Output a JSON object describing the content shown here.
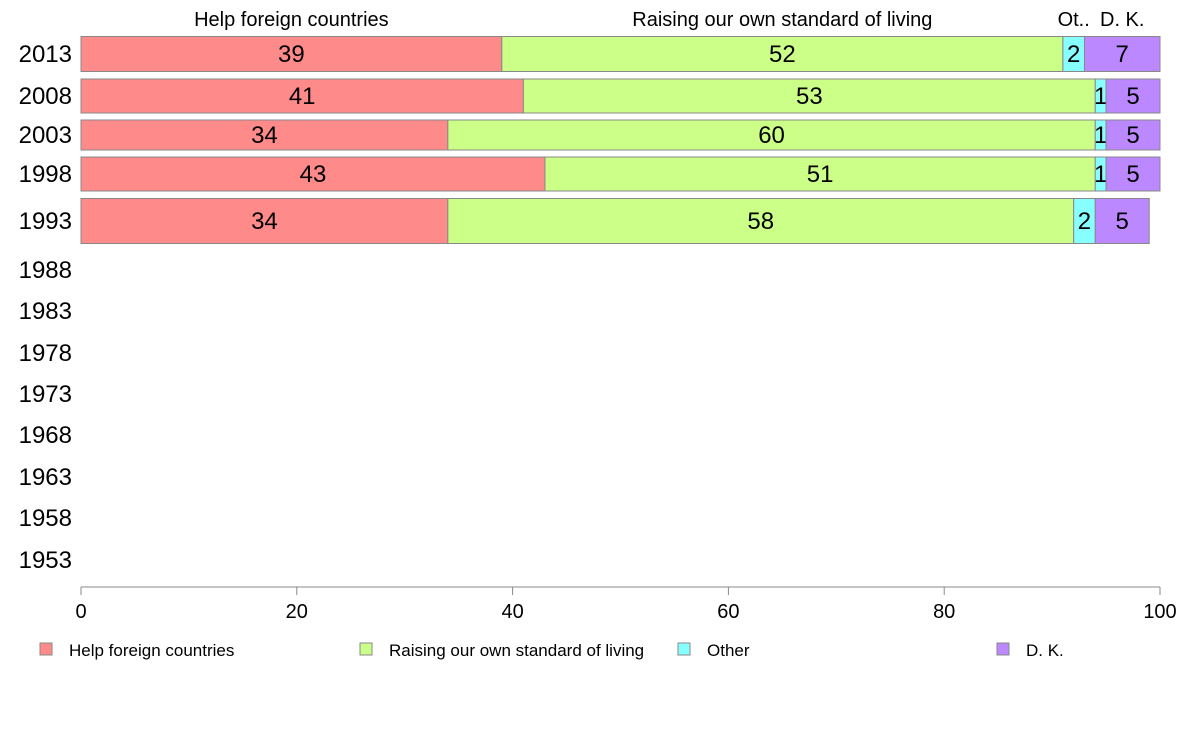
{
  "chart_data": {
    "type": "bar",
    "orientation": "horizontal",
    "stacked": true,
    "categories": [
      "2013",
      "2008",
      "2003",
      "1998",
      "1993",
      "1988",
      "1983",
      "1978",
      "1973",
      "1968",
      "1963",
      "1958",
      "1953"
    ],
    "series": [
      {
        "name": "Help foreign countries",
        "header": "Help foreign countries",
        "color": "#ff8a8a",
        "values": [
          39,
          41,
          34,
          43,
          34,
          null,
          null,
          null,
          null,
          null,
          null,
          null,
          null
        ],
        "labels": [
          "39",
          "41",
          "34",
          "43",
          "34"
        ]
      },
      {
        "name": "Raising our own standard of living",
        "header": "Raising our own standard of living",
        "color": "#ccff88",
        "values": [
          52,
          53,
          60,
          51,
          58,
          null,
          null,
          null,
          null,
          null,
          null,
          null,
          null
        ],
        "labels": [
          "52",
          "53",
          "60",
          "51",
          "58"
        ]
      },
      {
        "name": "Other",
        "header": "Ot..",
        "color": "#88ffff",
        "values": [
          2,
          1,
          1,
          1,
          2,
          null,
          null,
          null,
          null,
          null,
          null,
          null,
          null
        ],
        "labels": [
          "2",
          "1",
          "1",
          "1",
          "2"
        ]
      },
      {
        "name": "D. K.",
        "header": "D. K.",
        "color": "#bb88ff",
        "values": [
          7,
          5,
          5,
          5,
          5,
          null,
          null,
          null,
          null,
          null,
          null,
          null,
          null
        ],
        "labels": [
          "7",
          "5",
          "5",
          "5",
          "5"
        ]
      }
    ],
    "xlim": [
      0,
      100
    ],
    "xticks": [
      "0",
      "20",
      "40",
      "60",
      "80",
      "100"
    ],
    "title": "",
    "xlabel": "",
    "ylabel": "",
    "grid": false,
    "legend_position": "bottom"
  }
}
